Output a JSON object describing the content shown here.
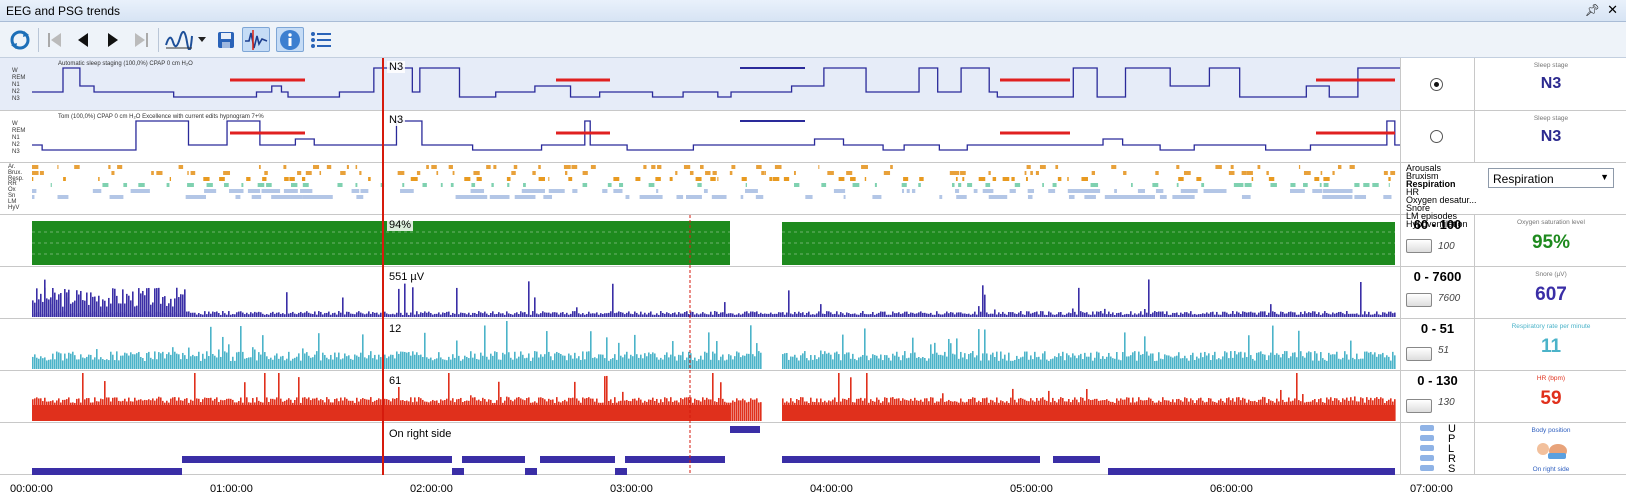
{
  "window": {
    "title": "EEG and PSG trends",
    "pin_icon": "pin-icon",
    "close_icon": "close-icon"
  },
  "toolbar": {
    "icons": [
      "refresh-icon",
      "first-icon",
      "previous-icon",
      "next-icon",
      "last-icon",
      "trend-icon",
      "dropdown-arrow-icon",
      "save-icon",
      "signal-icon",
      "info-icon",
      "list-icon"
    ]
  },
  "hypnogram_labels": [
    "W",
    "REM",
    "N1",
    "N2",
    "N3"
  ],
  "panels": {
    "sleep_auto": {
      "caption": "Automatic sleep staging  (100,0%)  CPAP 0 cm H₂O",
      "cursor_value": "N3",
      "side_label": "Sleep stage",
      "value": "N3",
      "selected": true
    },
    "sleep_manual": {
      "caption": "Tom  (100,0%)  CPAP 0 cm H₂O        Excellence with current edits  hypnogram 7+%",
      "cursor_value": "N3",
      "side_label": "Sleep stage",
      "value": "N3",
      "selected": false
    },
    "events": {
      "row_labels": [
        "Ar.",
        "Brux.",
        "Resp.",
        "RR",
        "Ox",
        "Sn",
        "LM",
        "HyV"
      ],
      "list": [
        "Arousals",
        "Bruxism",
        "Respiration",
        "HR",
        "Oxygen desatur...",
        "Snore",
        "LM episodes",
        "Hypoventilation"
      ],
      "dropdown_value": "Respiration"
    },
    "spo2": {
      "cursor_value": "94%",
      "range": "60 - 100",
      "max": "100",
      "side_label": "Oxygen saturation level",
      "value": "95%",
      "color": "#1e8a1e"
    },
    "snore": {
      "cursor_value": "551 µV",
      "range": "0 - 7600",
      "max": "7600",
      "side_label": "Snore (µV)",
      "value": "607",
      "color": "#3a2ea6"
    },
    "resp": {
      "cursor_value": "12",
      "range": "0 - 51",
      "max": "51",
      "side_label": "Respiratory rate per minute",
      "value": "11",
      "color": "#4bb3c9"
    },
    "hr": {
      "cursor_value": "61",
      "range": "0 - 130",
      "max": "130",
      "side_label": "HR (bpm)",
      "value": "59",
      "color": "#e0301c"
    },
    "position": {
      "cursor_value": "On right side",
      "letters": [
        "U",
        "P",
        "L",
        "R",
        "S"
      ],
      "side_label": "Body position",
      "value_caption": "On right side",
      "icon": "body-position-icon"
    }
  },
  "time_axis": [
    "00:00:00",
    "01:00:00",
    "02:00:00",
    "03:00:00",
    "04:00:00",
    "05:00:00",
    "06:00:00",
    "07:00:00"
  ]
}
